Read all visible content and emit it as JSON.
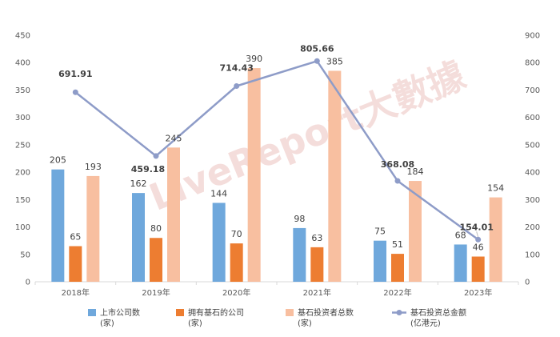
{
  "chart_data": {
    "type": "bar",
    "categories": [
      "2018年",
      "2019年",
      "2020年",
      "2021年",
      "2022年",
      "2023年"
    ],
    "series": [
      {
        "name": "上市公司数",
        "unit": "(家)",
        "type": "bar",
        "axis": "left",
        "color": "#6fa8dc",
        "values": [
          205,
          162,
          144,
          98,
          75,
          68
        ]
      },
      {
        "name": "拥有基石的公司",
        "unit": "(家)",
        "type": "bar",
        "axis": "left",
        "color": "#ed7d31",
        "values": [
          65,
          80,
          70,
          63,
          51,
          46
        ]
      },
      {
        "name": "基石投资者总数",
        "unit": "(家)",
        "type": "bar",
        "axis": "left",
        "color": "#f8bfa0",
        "values": [
          193,
          245,
          390,
          385,
          184,
          154
        ]
      },
      {
        "name": "基石投资总金额",
        "unit": "(亿港元)",
        "type": "line",
        "axis": "right",
        "color": "#8e9cc8",
        "values": [
          691.91,
          459.18,
          714.43,
          805.66,
          368.08,
          154.01
        ]
      }
    ],
    "bar_labels": [
      [
        "205",
        "162",
        "144",
        "98",
        "75",
        "68"
      ],
      [
        "65",
        "80",
        "70",
        "63",
        "51",
        "46"
      ],
      [
        "193",
        "245",
        "390",
        "385",
        "184",
        "154"
      ]
    ],
    "line_labels": [
      "691.91",
      "459.18",
      "714.43",
      "805.66",
      "368.08",
      "154.01"
    ],
    "y_left": {
      "min": 0,
      "max": 450,
      "step": 50,
      "ticks": [
        "0",
        "50",
        "100",
        "150",
        "200",
        "250",
        "300",
        "350",
        "400",
        "450"
      ]
    },
    "y_right": {
      "min": 0,
      "max": 900,
      "step": 100,
      "ticks": [
        "0",
        "100",
        "200",
        "300",
        "400",
        "500",
        "600",
        "700",
        "800",
        "900"
      ]
    },
    "legend_position": "bottom",
    "grid": false
  },
  "watermark": "LiveReport大數據"
}
